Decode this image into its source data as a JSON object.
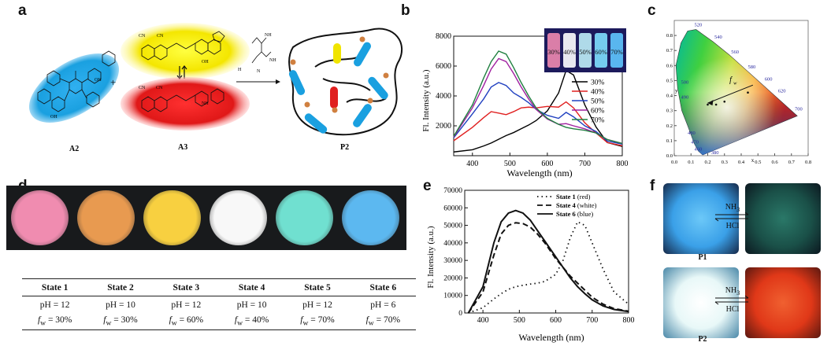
{
  "panels": {
    "a": "a",
    "b": "b",
    "c": "c",
    "d": "d",
    "e": "e",
    "f": "f"
  },
  "panel_a": {
    "labels": {
      "A2": "A2",
      "A3": "A3",
      "P2": "P2"
    },
    "plus": "+",
    "amine_labels": {
      "nh2_top": "NH",
      "nh2_right": "NH",
      "nh2_left": "H",
      "n": "N",
      "nh": "NH",
      "oh": "OH",
      "cn": "CN"
    },
    "colors": {
      "a2": "#1aa0e0",
      "a3_yellow": "#f0e400",
      "a3_red": "#e02020",
      "node": "#d08040"
    }
  },
  "chart_b": {
    "type": "line",
    "title": "",
    "xlabel": "Wavelength (nm)",
    "ylabel": "Fl. Intensity (a.u.)",
    "xlim": [
      350,
      800
    ],
    "ylim": [
      0,
      8000
    ],
    "xticks": [
      400,
      500,
      600,
      700,
      800
    ],
    "yticks": [
      2000,
      4000,
      6000,
      8000
    ],
    "x": [
      350,
      400,
      430,
      450,
      470,
      490,
      510,
      530,
      550,
      570,
      600,
      630,
      650,
      670,
      700,
      730,
      760,
      800
    ],
    "series": [
      {
        "name": "30%",
        "color": "#000000",
        "values": [
          250,
          400,
          650,
          850,
          1100,
          1350,
          1550,
          1800,
          2050,
          2350,
          3000,
          4200,
          5700,
          5400,
          3400,
          1800,
          1000,
          500
        ]
      },
      {
        "name": "40%",
        "color": "#e02020",
        "values": [
          1000,
          1900,
          2550,
          2950,
          2850,
          2750,
          2950,
          3200,
          3250,
          3200,
          3300,
          3250,
          3600,
          3200,
          2200,
          1400,
          1000,
          550
        ]
      },
      {
        "name": "50%",
        "color": "#2040c0",
        "values": [
          1200,
          2800,
          3800,
          4600,
          4900,
          4700,
          4200,
          3900,
          3550,
          3100,
          2700,
          2500,
          2900,
          2600,
          2000,
          1500,
          1100,
          650
        ]
      },
      {
        "name": "60%",
        "color": "#a020a0",
        "values": [
          1250,
          3200,
          4700,
          5800,
          6500,
          6300,
          5500,
          4600,
          3800,
          3100,
          2450,
          2100,
          2150,
          2000,
          1800,
          1400,
          1200,
          700
        ]
      },
      {
        "name": "70%",
        "color": "#208040",
        "values": [
          1300,
          3400,
          5200,
          6300,
          7000,
          6800,
          5900,
          4900,
          4000,
          3200,
          2500,
          2100,
          1900,
          1800,
          1700,
          1400,
          1200,
          700
        ]
      }
    ],
    "inset_labels": [
      "30%",
      "40%",
      "50%",
      "60%",
      "70%"
    ],
    "inset_colors": [
      "#f08ab0",
      "#ffffff",
      "#c0f0f8",
      "#80e0ff",
      "#60c8ff"
    ]
  },
  "chart_c": {
    "type": "scatter",
    "xlabel": "x",
    "ylabel": "y",
    "annotation": "f",
    "annotation_sub": "w",
    "xlim": [
      0.0,
      0.8
    ],
    "ylim": [
      0.0,
      0.9
    ],
    "xticks": [
      "0.0",
      "0.1",
      "0.2",
      "0.3",
      "0.4",
      "0.5",
      "0.6",
      "0.7",
      "0.8"
    ],
    "yticks": [
      "0.0",
      "0.1",
      "0.2",
      "0.3",
      "0.4",
      "0.5",
      "0.6",
      "0.7",
      "0.8"
    ],
    "locus_labels": [
      "520",
      "540",
      "560",
      "580",
      "600",
      "620",
      "700",
      "500",
      "490",
      "480",
      "470",
      "460",
      "380"
    ],
    "points": [
      {
        "x": 0.2,
        "y": 0.34
      },
      {
        "x": 0.22,
        "y": 0.35
      },
      {
        "x": 0.25,
        "y": 0.34
      },
      {
        "x": 0.3,
        "y": 0.36
      },
      {
        "x": 0.44,
        "y": 0.42
      }
    ],
    "arrow_from": [
      0.47,
      0.47
    ],
    "arrow_to": [
      0.2,
      0.35
    ]
  },
  "panel_d": {
    "disc_colors": [
      "#f08cb0",
      "#e89a50",
      "#f8d040",
      "#f8f8f8",
      "#70e0d0",
      "#5cb8f0"
    ],
    "table_headers": [
      "State 1",
      "State 2",
      "State 3",
      "State 4",
      "State 5",
      "State 6"
    ],
    "row_ph": [
      "pH = 12",
      "pH = 10",
      "pH = 12",
      "pH = 10",
      "pH = 12",
      "pH = 6"
    ],
    "row_fw_prefix": "f",
    "row_fw_sub": "w",
    "row_fw": [
      "= 30%",
      "= 30%",
      "=  60%",
      "= 40%",
      "= 70%",
      "= 70%"
    ]
  },
  "chart_e": {
    "type": "line",
    "xlabel": "Wavelength (nm)",
    "ylabel": "Fl. Intensity (a.u.)",
    "xlim": [
      350,
      800
    ],
    "ylim": [
      0,
      70000
    ],
    "xticks": [
      400,
      500,
      600,
      700,
      800
    ],
    "yticks": [
      0,
      10000,
      20000,
      30000,
      40000,
      50000,
      60000,
      70000
    ],
    "x": [
      360,
      400,
      430,
      450,
      470,
      490,
      510,
      530,
      550,
      570,
      600,
      620,
      640,
      660,
      680,
      700,
      730,
      760,
      800
    ],
    "series": [
      {
        "name": "State 1",
        "suffix": " (red)",
        "style": "dotted",
        "values": [
          0,
          3000,
          8000,
          11000,
          13500,
          15000,
          15800,
          16500,
          17000,
          18000,
          22000,
          30000,
          43000,
          52000,
          50000,
          40000,
          25000,
          12000,
          5000
        ]
      },
      {
        "name": "State 4",
        "suffix": " (white)",
        "style": "dashed",
        "values": [
          0,
          12000,
          33000,
          45000,
          50000,
          51500,
          51000,
          49000,
          45000,
          40000,
          31000,
          26000,
          21000,
          17000,
          13000,
          9000,
          5000,
          2500,
          1000
        ]
      },
      {
        "name": "State 6",
        "suffix": " (blue)",
        "style": "solid",
        "values": [
          0,
          15000,
          40000,
          52000,
          57000,
          58500,
          57000,
          53000,
          47000,
          41000,
          32000,
          26000,
          20000,
          15000,
          11000,
          7500,
          4000,
          2000,
          800
        ]
      }
    ]
  },
  "panel_f": {
    "reagent_top": "NH",
    "reagent_sub": "3",
    "reagent_bottom": "HCl",
    "labels": {
      "p1": "P1",
      "p2": "P2"
    }
  }
}
